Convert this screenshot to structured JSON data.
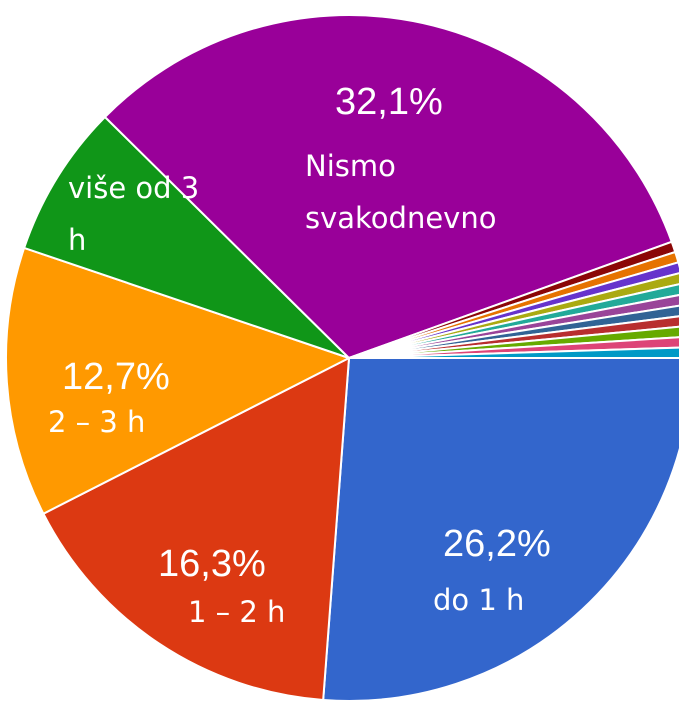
{
  "chart_data": {
    "type": "pie",
    "categories": [
      "do 1 h",
      "1 – 2 h",
      "2 – 3 h",
      "više od 3 h",
      "Nismo svakodnevno",
      null,
      null,
      null,
      null,
      null,
      null,
      null,
      null,
      null,
      null,
      null
    ],
    "values": [
      26.2,
      16.3,
      12.7,
      7.2,
      32.1,
      0.5,
      0.5,
      0.5,
      0.5,
      0.5,
      0.5,
      0.5,
      0.5,
      0.5,
      0.5,
      0.5
    ],
    "value_labels": [
      "26,2%",
      "16,3%",
      "12,7%",
      null,
      "32,1%",
      null,
      null,
      null,
      null,
      null,
      null,
      null,
      null,
      null,
      null,
      null
    ],
    "colors": [
      "#3366cc",
      "#dc3912",
      "#ff9900",
      "#109618",
      "#990099",
      "#8b0707",
      "#e67300",
      "#6633cc",
      "#aaaa11",
      "#22aa99",
      "#994499",
      "#316395",
      "#b82e2e",
      "#66aa00",
      "#dd4477",
      "#0099c6"
    ]
  }
}
